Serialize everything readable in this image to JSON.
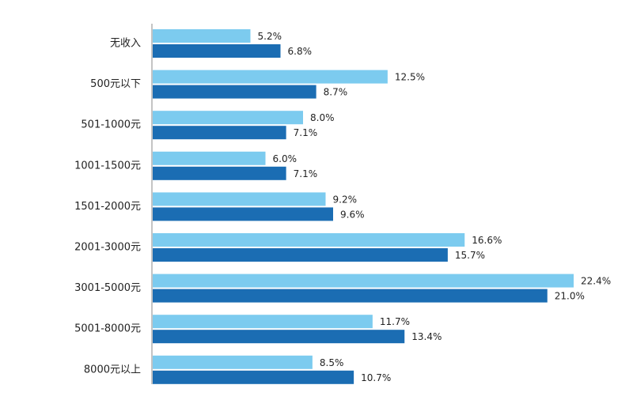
{
  "chart_data": {
    "type": "hbar",
    "categories": [
      "无收入",
      "500元以下",
      "501-1000元",
      "1001-1500元",
      "1501-2000元",
      "2001-3000元",
      "3001-5000元",
      "5001-8000元",
      "8000元以上"
    ],
    "series": [
      {
        "color": "#7ccbef",
        "values": [
          5.2,
          12.5,
          8.0,
          6.0,
          9.2,
          16.6,
          22.4,
          11.7,
          8.5
        ],
        "value_labels": [
          "5.2%",
          "12.5%",
          "8.0%",
          "6.0%",
          "9.2%",
          "16.6%",
          "22.4%",
          "11.7%",
          "8.5%"
        ]
      },
      {
        "color": "#1b6db3",
        "values": [
          6.8,
          8.7,
          7.1,
          7.1,
          9.6,
          15.7,
          21.0,
          13.4,
          10.7
        ],
        "value_labels": [
          "6.8%",
          "8.7%",
          "7.1%",
          "7.1%",
          "9.6%",
          "15.7%",
          "21.0%",
          "13.4%",
          "10.7%"
        ]
      }
    ]
  }
}
